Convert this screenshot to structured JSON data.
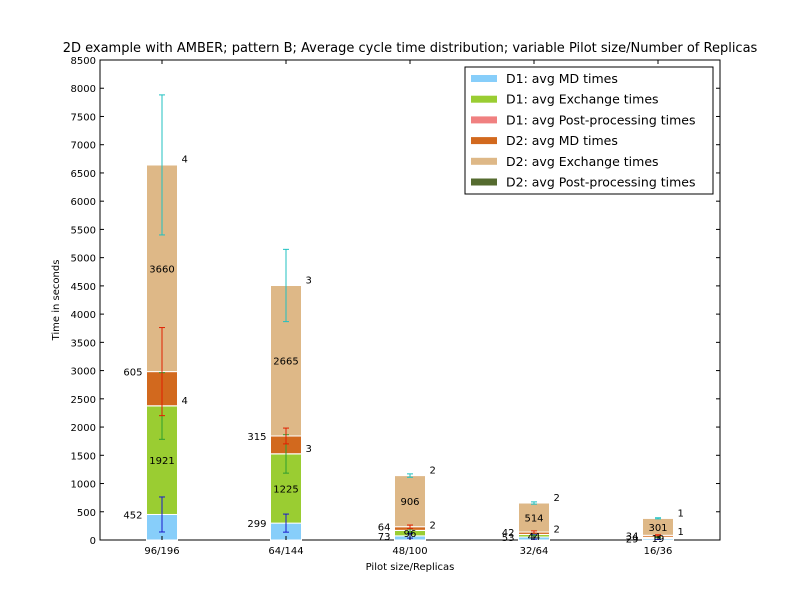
{
  "chart_data": {
    "type": "bar",
    "stacked": true,
    "title": "2D example with AMBER; pattern B; Average cycle time distribution; variable Pilot size/Number of Replicas",
    "xlabel": "Pilot size/Replicas",
    "ylabel": "Time in seconds",
    "ylim": [
      0,
      8500
    ],
    "yticks": [
      0,
      500,
      1000,
      1500,
      2000,
      2500,
      3000,
      3500,
      4000,
      4500,
      5000,
      5500,
      6000,
      6500,
      7000,
      7500,
      8000,
      8500
    ],
    "categories": [
      "96/196",
      "64/144",
      "48/100",
      "32/64",
      "16/36"
    ],
    "legend_position": "top-right",
    "grid": false,
    "series": [
      {
        "name": "D1: avg MD times",
        "color": "#87CEFA",
        "values": [
          452,
          299,
          73,
          53,
          29
        ],
        "errors": [
          310,
          160,
          40,
          40,
          20
        ],
        "error_color": "#1a1acc"
      },
      {
        "name": "D1: avg Exchange times",
        "color": "#9ACD32",
        "values": [
          1921,
          1225,
          96,
          44,
          19
        ],
        "errors": [
          590,
          340,
          30,
          20,
          10
        ],
        "error_color": "#2f9e2f"
      },
      {
        "name": "D1: avg Post-processing times",
        "color": "#F08080",
        "values": [
          4,
          3,
          2,
          2,
          1
        ],
        "errors": [
          0,
          0,
          0,
          0,
          0
        ],
        "error_color": "#cc3333"
      },
      {
        "name": "D2: avg MD times",
        "color": "#D2691E",
        "values": [
          605,
          315,
          64,
          42,
          34
        ],
        "errors": [
          780,
          140,
          30,
          20,
          10
        ],
        "error_color": "#e02000"
      },
      {
        "name": "D2: avg Exchange times",
        "color": "#DEB887",
        "values": [
          3660,
          2665,
          906,
          514,
          301
        ],
        "errors": [
          1240,
          640,
          30,
          20,
          10
        ],
        "error_color": "#20c0c0"
      },
      {
        "name": "D2: avg Post-processing times",
        "color": "#556B2F",
        "values": [
          4,
          3,
          2,
          2,
          1
        ],
        "errors": [
          0,
          0,
          0,
          0,
          0
        ],
        "error_color": "#333333"
      }
    ],
    "segment_labels": [
      {
        "series": 0,
        "category": 0,
        "text": "452",
        "side": "left"
      },
      {
        "series": 1,
        "category": 0,
        "text": "1921",
        "side": "center"
      },
      {
        "series": 2,
        "category": 0,
        "text": "4",
        "side": "right"
      },
      {
        "series": 3,
        "category": 0,
        "text": "605",
        "side": "left"
      },
      {
        "series": 4,
        "category": 0,
        "text": "3660",
        "side": "center"
      },
      {
        "series": 5,
        "category": 0,
        "text": "4",
        "side": "right"
      },
      {
        "series": 0,
        "category": 1,
        "text": "299",
        "side": "left"
      },
      {
        "series": 1,
        "category": 1,
        "text": "1225",
        "side": "center"
      },
      {
        "series": 2,
        "category": 1,
        "text": "3",
        "side": "right"
      },
      {
        "series": 3,
        "category": 1,
        "text": "315",
        "side": "left"
      },
      {
        "series": 4,
        "category": 1,
        "text": "2665",
        "side": "center"
      },
      {
        "series": 5,
        "category": 1,
        "text": "3",
        "side": "right"
      },
      {
        "series": 0,
        "category": 2,
        "text": "73",
        "side": "left"
      },
      {
        "series": 1,
        "category": 2,
        "text": "96",
        "side": "center"
      },
      {
        "series": 2,
        "category": 2,
        "text": "2",
        "side": "right"
      },
      {
        "series": 3,
        "category": 2,
        "text": "64",
        "side": "left"
      },
      {
        "series": 4,
        "category": 2,
        "text": "906",
        "side": "center"
      },
      {
        "series": 5,
        "category": 2,
        "text": "2",
        "side": "right"
      },
      {
        "series": 0,
        "category": 3,
        "text": "53",
        "side": "left"
      },
      {
        "series": 1,
        "category": 3,
        "text": "44",
        "side": "center"
      },
      {
        "series": 2,
        "category": 3,
        "text": "2",
        "side": "right"
      },
      {
        "series": 3,
        "category": 3,
        "text": "42",
        "side": "left"
      },
      {
        "series": 4,
        "category": 3,
        "text": "514",
        "side": "center"
      },
      {
        "series": 5,
        "category": 3,
        "text": "2",
        "side": "right"
      },
      {
        "series": 0,
        "category": 4,
        "text": "29",
        "side": "left"
      },
      {
        "series": 1,
        "category": 4,
        "text": "19",
        "side": "center"
      },
      {
        "series": 2,
        "category": 4,
        "text": "1",
        "side": "right"
      },
      {
        "series": 3,
        "category": 4,
        "text": "34",
        "side": "left"
      },
      {
        "series": 4,
        "category": 4,
        "text": "301",
        "side": "center"
      },
      {
        "series": 5,
        "category": 4,
        "text": "1",
        "side": "right"
      }
    ]
  }
}
